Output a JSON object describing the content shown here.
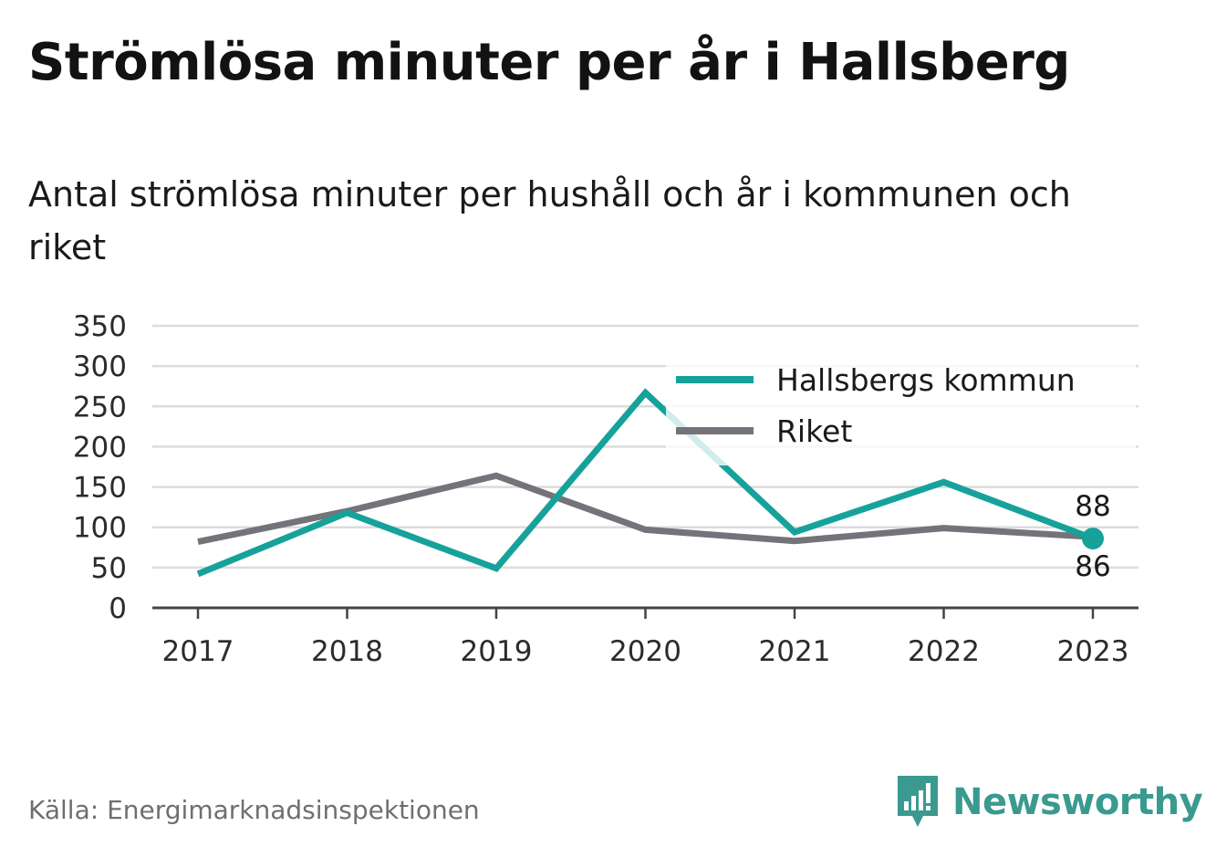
{
  "title": "Strömlösa minuter per år i Hallsberg",
  "subtitle": "Antal strömlösa minuter per hushåll och år i kommunen och riket",
  "source": "Källa: Energimarknadsinspektionen",
  "brand": "Newsworthy",
  "colors": {
    "hallsberg": "#16a29a",
    "riket": "#747379",
    "grid": "#dcdcdc",
    "axis": "#444444",
    "brand": "#3a9a90"
  },
  "chart_data": {
    "type": "line",
    "x": [
      "2017",
      "2018",
      "2019",
      "2020",
      "2021",
      "2022",
      "2023"
    ],
    "ylim": [
      0,
      350
    ],
    "yticks": [
      0,
      50,
      100,
      150,
      200,
      250,
      300,
      350
    ],
    "grid": true,
    "legend_position": "top-right",
    "series": [
      {
        "name": "Hallsbergs kommun",
        "values": [
          42,
          118,
          49,
          267,
          94,
          156,
          86
        ],
        "end_label": "86"
      },
      {
        "name": "Riket",
        "values": [
          82,
          120,
          164,
          97,
          83,
          99,
          88
        ],
        "end_label": "88"
      }
    ]
  }
}
